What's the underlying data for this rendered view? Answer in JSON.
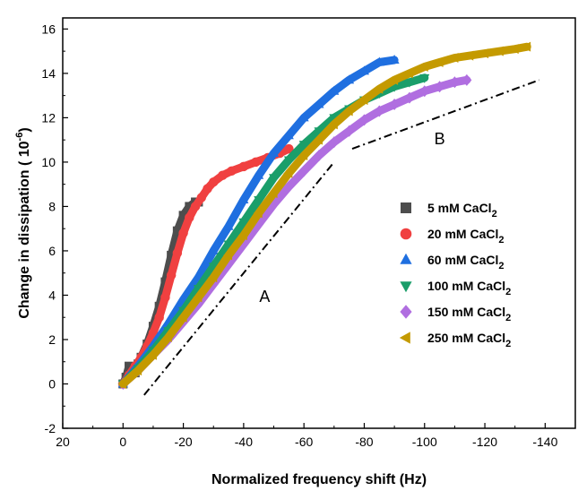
{
  "chart_data": {
    "type": "scatter",
    "xlabel": "Normalized frequency shift (Hz)",
    "ylabel_prefix": "Change in dissipation ( 10",
    "ylabel_sup": "-6",
    "ylabel_suffix": ")",
    "xlim": [
      20,
      -150
    ],
    "ylim": [
      -2,
      16.5
    ],
    "x_ticks": [
      20,
      0,
      -20,
      -40,
      -60,
      -80,
      -100,
      -120,
      -140
    ],
    "y_ticks": [
      -2,
      0,
      2,
      4,
      6,
      8,
      10,
      12,
      14,
      16
    ],
    "grid": false,
    "legend_position": "center-right",
    "series": [
      {
        "name": "5 mM CaCl",
        "name_sub": "2",
        "marker": "square",
        "color": "#4d4d4d",
        "x": [
          0,
          -1,
          -2,
          -3,
          -4,
          -5,
          -6,
          -8,
          -10,
          -12,
          -14,
          -16,
          -18,
          -20,
          -22,
          -24,
          -25
        ],
        "y": [
          0,
          0.3,
          0.8,
          0.6,
          0.5,
          0.9,
          1.2,
          1.8,
          2.6,
          3.5,
          4.6,
          5.8,
          6.9,
          7.6,
          8.0,
          8.2,
          8.2
        ]
      },
      {
        "name": "20 mM CaCl",
        "name_sub": "2",
        "marker": "circle",
        "color": "#f04040",
        "x": [
          0,
          -2,
          -4,
          -6,
          -8,
          -10,
          -12,
          -14,
          -16,
          -18,
          -20,
          -22,
          -24,
          -26,
          -28,
          -30,
          -33,
          -36,
          -40,
          -44,
          -48,
          -52,
          -55
        ],
        "y": [
          0,
          0.4,
          0.8,
          1.2,
          1.7,
          2.3,
          3.0,
          3.9,
          4.9,
          5.9,
          6.8,
          7.5,
          8.0,
          8.4,
          8.8,
          9.1,
          9.4,
          9.6,
          9.8,
          10.0,
          10.2,
          10.4,
          10.6
        ]
      },
      {
        "name": "60 mM CaCl",
        "name_sub": "2",
        "marker": "triangle-up",
        "color": "#1f6fe0",
        "x": [
          0,
          -5,
          -10,
          -15,
          -20,
          -25,
          -30,
          -35,
          -40,
          -45,
          -50,
          -55,
          -60,
          -65,
          -70,
          -75,
          -80,
          -85,
          -90
        ],
        "y": [
          0,
          0.8,
          1.7,
          2.7,
          3.8,
          4.8,
          6.0,
          7.1,
          8.3,
          9.4,
          10.4,
          11.2,
          12.0,
          12.6,
          13.2,
          13.7,
          14.1,
          14.5,
          14.6
        ]
      },
      {
        "name": "100 mM CaCl",
        "name_sub": "2",
        "marker": "triangle-down",
        "color": "#1a9e6a",
        "x": [
          0,
          -5,
          -10,
          -15,
          -20,
          -25,
          -30,
          -35,
          -40,
          -45,
          -50,
          -55,
          -60,
          -65,
          -70,
          -75,
          -80,
          -85,
          -90,
          -95,
          -100
        ],
        "y": [
          0,
          0.7,
          1.5,
          2.4,
          3.3,
          4.3,
          5.3,
          6.3,
          7.3,
          8.3,
          9.3,
          10.1,
          10.8,
          11.4,
          12.0,
          12.4,
          12.8,
          13.1,
          13.4,
          13.6,
          13.8
        ]
      },
      {
        "name": "150 mM CaCl",
        "name_sub": "2",
        "marker": "diamond",
        "color": "#b06ee0",
        "x": [
          0,
          -5,
          -10,
          -15,
          -20,
          -25,
          -30,
          -35,
          -40,
          -45,
          -50,
          -55,
          -60,
          -65,
          -70,
          -75,
          -80,
          -85,
          -90,
          -95,
          -100,
          -105,
          -110,
          -114
        ],
        "y": [
          0,
          0.6,
          1.3,
          2.0,
          2.8,
          3.6,
          4.5,
          5.4,
          6.3,
          7.2,
          8.1,
          8.9,
          9.6,
          10.3,
          10.9,
          11.4,
          11.9,
          12.3,
          12.6,
          12.9,
          13.2,
          13.4,
          13.6,
          13.7
        ]
      },
      {
        "name": "250 mM CaCl",
        "name_sub": "2",
        "marker": "triangle-left",
        "color": "#c49a00",
        "x": [
          0,
          -5,
          -10,
          -15,
          -20,
          -25,
          -30,
          -35,
          -40,
          -45,
          -50,
          -55,
          -60,
          -65,
          -70,
          -75,
          -80,
          -85,
          -90,
          -95,
          -100,
          -105,
          -110,
          -115,
          -120,
          -125,
          -130,
          -134
        ],
        "y": [
          0,
          0.6,
          1.3,
          2.1,
          3.0,
          3.9,
          4.8,
          5.8,
          6.7,
          7.7,
          8.6,
          9.5,
          10.3,
          11.0,
          11.7,
          12.3,
          12.8,
          13.3,
          13.7,
          14.0,
          14.3,
          14.5,
          14.7,
          14.8,
          14.9,
          15.0,
          15.1,
          15.2
        ]
      }
    ],
    "reference_lines": [
      {
        "label": "A",
        "x": [
          -7,
          -70
        ],
        "y": [
          -0.5,
          10.0
        ]
      },
      {
        "label": "B",
        "x": [
          -76,
          -138
        ],
        "y": [
          10.6,
          13.7
        ]
      }
    ],
    "annotations": [
      {
        "text": "A",
        "x": -47,
        "y": 3.7
      },
      {
        "text": "B",
        "x": -105,
        "y": 10.8
      }
    ]
  }
}
